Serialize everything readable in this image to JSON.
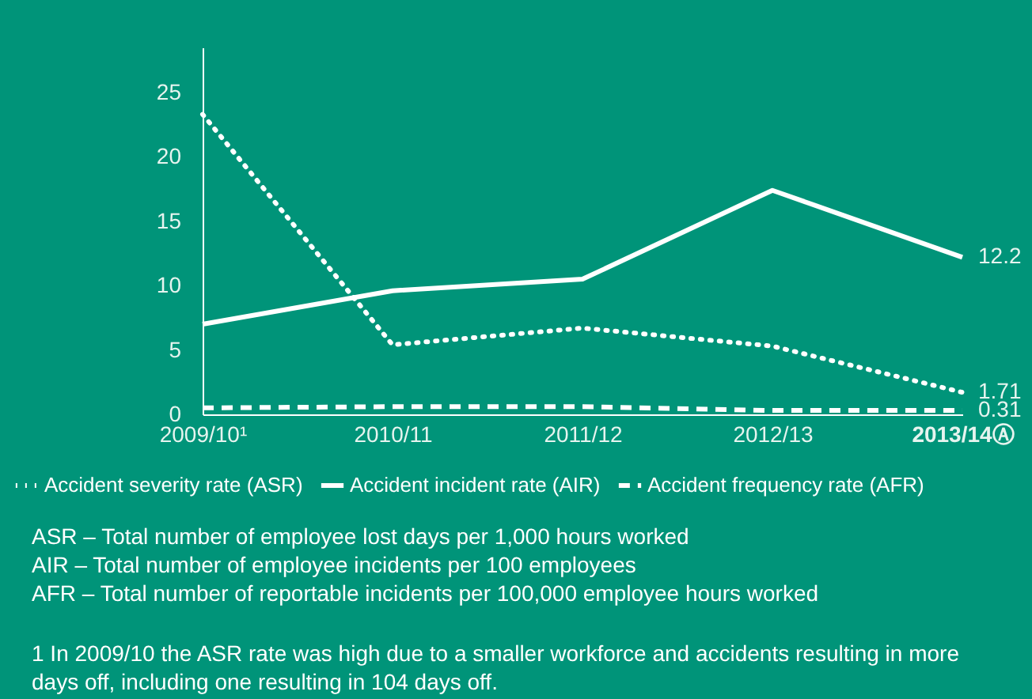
{
  "chart_data": {
    "type": "line",
    "categories": [
      "2009/10¹",
      "2010/11",
      "2011/12",
      "2012/13",
      "2013/14Ⓐ"
    ],
    "series": [
      {
        "name": "Accident severity rate (ASR)",
        "color": "#ffffff",
        "line_style": "dotted",
        "values": [
          23.3,
          5.4,
          6.7,
          5.3,
          1.71
        ],
        "value_labels": [
          null,
          null,
          null,
          null,
          "1.71"
        ]
      },
      {
        "name": "Accident incident rate (AIR)",
        "color": "#ffffff",
        "line_style": "solid",
        "values": [
          7.0,
          9.6,
          10.5,
          17.4,
          12.2
        ],
        "value_labels": [
          null,
          null,
          null,
          null,
          "12.2"
        ]
      },
      {
        "name": "Accident frequency rate (AFR)",
        "color": "#ffffff",
        "line_style": "dashed",
        "values": [
          0.5,
          0.6,
          0.6,
          0.3,
          0.31
        ],
        "value_labels": [
          null,
          null,
          null,
          null,
          "0.31"
        ]
      }
    ],
    "ylim": [
      0,
      28.5
    ],
    "yticks": [
      0,
      5,
      10,
      15,
      20,
      25
    ],
    "grid": false,
    "legend": "bottom",
    "marker": "none",
    "annotations": [
      "ASR –  Total number of employee lost days per 1,000 hours worked",
      "AIR –   Total number of employee incidents per 100 employees",
      "AFR –  Total number of reportable incidents per 100,000 employee hours worked",
      "1  In 2009/10 the ASR rate was high due to a smaller workforce and accidents resulting in more days off, including one resulting in 104 days off."
    ]
  }
}
